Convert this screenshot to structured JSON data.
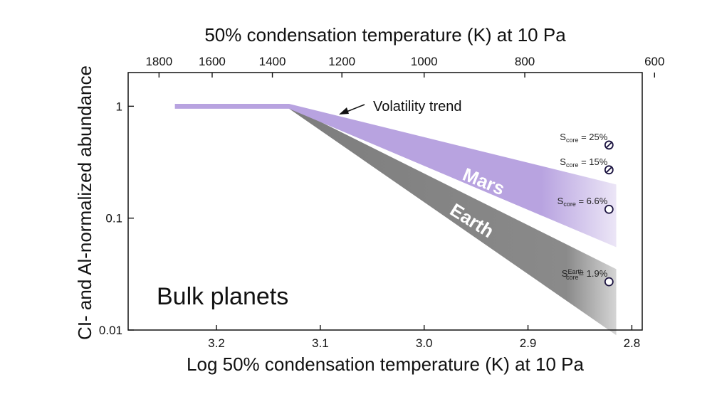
{
  "chart_data": {
    "type": "area",
    "xlabel_bottom": "Log 50% condensation temperature (K) at 10 Pa",
    "xlabel_top": "50% condensation temperature (K) at 10 Pa",
    "ylabel": "CI- and Al-normalized abundance",
    "xlim_log": [
      3.285,
      2.79
    ],
    "ylim": [
      0.01,
      2
    ],
    "yscale": "log",
    "bottom_ticks": [
      {
        "value": 3.2,
        "label": "3.2"
      },
      {
        "value": 3.1,
        "label": "3.1"
      },
      {
        "value": 3.0,
        "label": "3.0"
      },
      {
        "value": 2.9,
        "label": "2.9"
      },
      {
        "value": 2.8,
        "label": "2.8"
      }
    ],
    "top_ticks": [
      {
        "value": 1800,
        "label": "1800"
      },
      {
        "value": 1600,
        "label": "1600"
      },
      {
        "value": 1400,
        "label": "1400"
      },
      {
        "value": 1200,
        "label": "1200"
      },
      {
        "value": 1000,
        "label": "1000"
      },
      {
        "value": 800,
        "label": "800"
      },
      {
        "value": 600,
        "label": "600"
      }
    ],
    "y_ticks": [
      {
        "value": 1,
        "label": "1"
      },
      {
        "value": 0.1,
        "label": "0.1"
      },
      {
        "value": 0.01,
        "label": "0.01"
      }
    ],
    "series": [
      {
        "name": "Earth",
        "color": "#888888",
        "lower": [
          [
            3.13,
            0.95
          ],
          [
            2.815,
            0.009
          ]
        ],
        "upper": [
          [
            3.13,
            1.0
          ],
          [
            2.815,
            0.035
          ]
        ]
      },
      {
        "name": "Mars",
        "color": "#b8a3e0",
        "lower": [
          [
            3.24,
            0.95
          ],
          [
            3.13,
            0.95
          ],
          [
            2.815,
            0.055
          ]
        ],
        "upper": [
          [
            3.24,
            1.05
          ],
          [
            3.13,
            1.05
          ],
          [
            2.815,
            0.2
          ]
        ]
      }
    ],
    "points": [
      {
        "label_main": "S",
        "label_sub": "core",
        "label_value": " = 25%",
        "x": 2.822,
        "y": 0.45,
        "style": "slashed"
      },
      {
        "label_main": "S",
        "label_sub": "core",
        "label_value": " = 15%",
        "x": 2.822,
        "y": 0.27,
        "style": "slashed"
      },
      {
        "label_main": "S",
        "label_sub": "core",
        "label_value": " = 6.6%",
        "x": 2.822,
        "y": 0.12,
        "style": "open"
      },
      {
        "label_main": "S",
        "label_sub": "core",
        "label_sup": "Earth",
        "label_value": "= 1.9%",
        "x": 2.822,
        "y": 0.027,
        "style": "open"
      }
    ],
    "annotations": {
      "arrow_text": "Volatility trend",
      "panel_label": "Bulk planets"
    }
  }
}
